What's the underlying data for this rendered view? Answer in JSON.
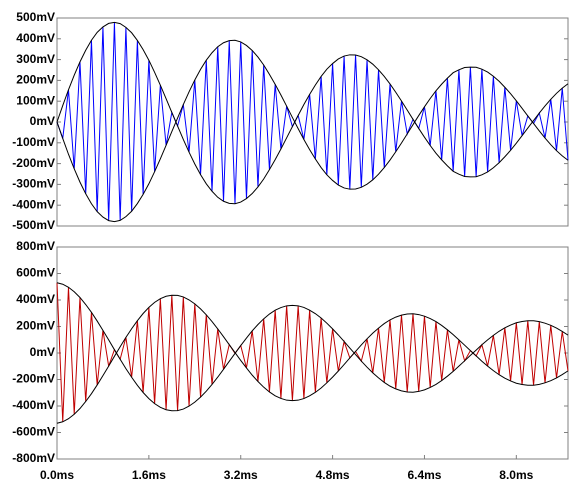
{
  "chart_data": [
    {
      "type": "line",
      "x": [
        0,
        0.1,
        0.2,
        0.3,
        0.4,
        0.5,
        0.6,
        0.7,
        0.8,
        0.9,
        1.0,
        1.1,
        1.2,
        1.3,
        1.4,
        1.5,
        1.6,
        1.7,
        1.8,
        1.9,
        2.0,
        2.1,
        2.2,
        2.3,
        2.4,
        2.5,
        2.6,
        2.7,
        2.8,
        2.9,
        3.0,
        3.1,
        3.2,
        3.3,
        3.4,
        3.5,
        3.6,
        3.7,
        3.8,
        3.9,
        4.0,
        4.1,
        4.2,
        4.3,
        4.4,
        4.5,
        4.6,
        4.7,
        4.8,
        4.9,
        5.0,
        5.1,
        5.2,
        5.3,
        5.4,
        5.5,
        5.6,
        5.7,
        5.8,
        5.9,
        6.0,
        6.1,
        6.2,
        6.3,
        6.4,
        6.5,
        6.6,
        6.7,
        6.8,
        6.9,
        7.0,
        7.1,
        7.2,
        7.3,
        7.4,
        7.5,
        7.6,
        7.7,
        7.8,
        7.9,
        8.0,
        8.1,
        8.2,
        8.3,
        8.4,
        8.5,
        8.6,
        8.7,
        8.8,
        8.9
      ],
      "xlim": [
        0,
        8.9
      ],
      "ylim": [
        -500,
        500
      ],
      "yticks": [
        {
          "value": 500,
          "label": "500mV"
        },
        {
          "value": 400,
          "label": "400mV"
        },
        {
          "value": 300,
          "label": "300mV"
        },
        {
          "value": 200,
          "label": "200mV"
        },
        {
          "value": 100,
          "label": "100mV"
        },
        {
          "value": 0,
          "label": "0mV"
        },
        {
          "value": -100,
          "label": "-100mV"
        },
        {
          "value": -200,
          "label": "-200mV"
        },
        {
          "value": -300,
          "label": "-300mV"
        },
        {
          "value": -400,
          "label": "-400mV"
        },
        {
          "value": -500,
          "label": "-500mV"
        }
      ],
      "series": [
        {
          "color": "#0000ff",
          "values": [
            0,
            -79,
            155,
            -225,
            289,
            -345,
            393,
            -431,
            457,
            -474,
            479,
            -473,
            455,
            -429,
            392,
            -348,
            297,
            -239,
            177,
            -112,
            46,
            -19,
            84,
            -145,
            202,
            -253,
            297,
            -333,
            362,
            -381,
            391,
            -393,
            385,
            -368,
            344,
            -312,
            274,
            -229,
            181,
            -130,
            76,
            -22,
            32,
            -84,
            133,
            -178,
            219,
            -254,
            281,
            -303,
            317,
            -323,
            322,
            -314,
            299,
            -278,
            251,
            -219,
            183,
            -143,
            101,
            -57,
            13,
            -31,
            73,
            -113,
            150,
            -182,
            211,
            -237,
            251,
            -262,
            264,
            -263,
            254,
            -240,
            220,
            -196,
            167,
            -136,
            102,
            -66,
            29,
            -7,
            43,
            -77,
            109,
            -138,
            163,
            -184
          ]
        },
        {
          "color": "#000000",
          "values": [
            0,
            79,
            155,
            225,
            289,
            345,
            393,
            431,
            457,
            474,
            479,
            473,
            455,
            429,
            392,
            348,
            297,
            239,
            177,
            112,
            46,
            -19,
            -84,
            -145,
            -202,
            -253,
            -297,
            -333,
            -362,
            -381,
            -391,
            -393,
            -385,
            -368,
            -344,
            -312,
            -274,
            -229,
            -181,
            -130,
            -76,
            -22,
            32,
            84,
            133,
            178,
            219,
            254,
            281,
            303,
            317,
            323,
            322,
            314,
            299,
            278,
            251,
            219,
            183,
            143,
            101,
            57,
            13,
            -31,
            -73,
            -113,
            -150,
            -182,
            -211,
            -237,
            -251,
            -262,
            -264,
            -263,
            -254,
            -240,
            -220,
            -196,
            -167,
            -136,
            -102,
            -66,
            -29,
            7,
            43,
            77,
            109,
            138,
            163,
            184
          ]
        },
        {
          "color": "#000000",
          "values": [
            0,
            -79,
            -155,
            -225,
            -289,
            -345,
            -393,
            -431,
            -457,
            -474,
            -479,
            -473,
            -455,
            -429,
            -392,
            -348,
            -297,
            -239,
            -177,
            -112,
            -46,
            19,
            84,
            145,
            202,
            253,
            297,
            333,
            362,
            381,
            391,
            393,
            385,
            368,
            344,
            312,
            274,
            229,
            181,
            130,
            76,
            22,
            -32,
            -84,
            -133,
            -178,
            -219,
            -254,
            -281,
            -303,
            -317,
            -323,
            -322,
            -314,
            -299,
            -278,
            -251,
            -219,
            -183,
            -143,
            -101,
            -57,
            -13,
            31,
            73,
            113,
            150,
            182,
            211,
            237,
            251,
            262,
            264,
            263,
            254,
            240,
            220,
            196,
            167,
            136,
            102,
            66,
            29,
            -7,
            -43,
            -77,
            -109,
            -138,
            -163,
            -184
          ]
        }
      ]
    },
    {
      "type": "line",
      "x": [
        0,
        0.1,
        0.2,
        0.3,
        0.4,
        0.5,
        0.6,
        0.7,
        0.8,
        0.9,
        1.0,
        1.1,
        1.2,
        1.3,
        1.4,
        1.5,
        1.6,
        1.7,
        1.8,
        1.9,
        2.0,
        2.1,
        2.2,
        2.3,
        2.4,
        2.5,
        2.6,
        2.7,
        2.8,
        2.9,
        3.0,
        3.1,
        3.2,
        3.3,
        3.4,
        3.5,
        3.6,
        3.7,
        3.8,
        3.9,
        4.0,
        4.1,
        4.2,
        4.3,
        4.4,
        4.5,
        4.6,
        4.7,
        4.8,
        4.9,
        5.0,
        5.1,
        5.2,
        5.3,
        5.4,
        5.5,
        5.6,
        5.7,
        5.8,
        5.9,
        6.0,
        6.1,
        6.2,
        6.3,
        6.4,
        6.5,
        6.6,
        6.7,
        6.8,
        6.9,
        7.0,
        7.1,
        7.2,
        7.3,
        7.4,
        7.5,
        7.6,
        7.7,
        7.8,
        7.9,
        8.0,
        8.1,
        8.2,
        8.3,
        8.4,
        8.5,
        8.6,
        8.7,
        8.8,
        8.9
      ],
      "xlim": [
        0,
        8.9
      ],
      "xticks": [
        {
          "value": 0,
          "label": "0.0ms"
        },
        {
          "value": 1.6,
          "label": "1.6ms"
        },
        {
          "value": 3.2,
          "label": "3.2ms"
        },
        {
          "value": 4.8,
          "label": "4.8ms"
        },
        {
          "value": 6.4,
          "label": "6.4ms"
        },
        {
          "value": 8.0,
          "label": "8.0ms"
        }
      ],
      "ylim": [
        -800,
        800
      ],
      "yticks": [
        {
          "value": 800,
          "label": "800mV"
        },
        {
          "value": 600,
          "label": "600mV"
        },
        {
          "value": 400,
          "label": "400mV"
        },
        {
          "value": 200,
          "label": "200mV"
        },
        {
          "value": 0,
          "label": "0mV"
        },
        {
          "value": -200,
          "label": "-200mV"
        },
        {
          "value": -400,
          "label": "-400mV"
        },
        {
          "value": -600,
          "label": "-600mV"
        },
        {
          "value": -800,
          "label": "-800mV"
        }
      ],
      "series": [
        {
          "color": "#c00000",
          "values": [
            530,
            -519,
            496,
            -462,
            419,
            -366,
            307,
            -241,
            171,
            -99,
            25,
            -47,
            118,
            -183,
            244,
            -298,
            344,
            -382,
            410,
            -428,
            436,
            -435,
            423,
            -401,
            371,
            -333,
            288,
            -237,
            182,
            -123,
            63,
            -3,
            56,
            -113,
            167,
            -215,
            258,
            -294,
            323,
            -343,
            356,
            -359,
            356,
            -344,
            323,
            -297,
            264,
            -225,
            182,
            -136,
            87,
            -37,
            12,
            -61,
            107,
            -150,
            188,
            -222,
            250,
            -271,
            286,
            -294,
            296,
            -290,
            278,
            -260,
            237,
            -208,
            175,
            -139,
            99,
            -59,
            18,
            -22,
            62,
            -99,
            133,
            -164,
            190,
            -211,
            228,
            -238,
            243,
            -243,
            237,
            -225,
            209,
            -188,
            163,
            -135
          ]
        },
        {
          "color": "#000000",
          "values": [
            530,
            519,
            496,
            462,
            419,
            366,
            307,
            241,
            171,
            99,
            25,
            -47,
            -118,
            -183,
            -244,
            -298,
            -344,
            -382,
            -410,
            -428,
            -436,
            -435,
            -423,
            -401,
            -371,
            -333,
            -288,
            -237,
            -182,
            -123,
            -63,
            -3,
            56,
            113,
            167,
            215,
            258,
            294,
            323,
            343,
            356,
            359,
            356,
            344,
            323,
            297,
            264,
            225,
            182,
            136,
            87,
            37,
            -12,
            -61,
            -107,
            -150,
            -188,
            -222,
            -250,
            -271,
            -286,
            -294,
            -296,
            -290,
            -278,
            -260,
            -237,
            -208,
            -175,
            -139,
            -99,
            -59,
            -18,
            22,
            62,
            99,
            133,
            164,
            190,
            211,
            228,
            238,
            243,
            243,
            237,
            225,
            209,
            188,
            163,
            135
          ]
        },
        {
          "color": "#000000",
          "values": [
            -530,
            -519,
            -496,
            -462,
            -419,
            -366,
            -307,
            -241,
            -171,
            -99,
            -25,
            47,
            118,
            183,
            244,
            298,
            344,
            382,
            410,
            428,
            436,
            435,
            423,
            401,
            371,
            333,
            288,
            237,
            182,
            123,
            63,
            3,
            -56,
            -113,
            -167,
            -215,
            -258,
            -294,
            -323,
            -343,
            -356,
            -359,
            -356,
            -344,
            -323,
            -297,
            -264,
            -225,
            -182,
            -136,
            -87,
            -37,
            12,
            61,
            107,
            150,
            188,
            222,
            250,
            271,
            286,
            294,
            296,
            290,
            278,
            260,
            237,
            208,
            175,
            139,
            99,
            59,
            18,
            -22,
            -62,
            -99,
            -133,
            -164,
            -190,
            -211,
            -228,
            -238,
            -243,
            -243,
            -237,
            -225,
            -209,
            -188,
            -163,
            -135
          ]
        }
      ]
    }
  ]
}
